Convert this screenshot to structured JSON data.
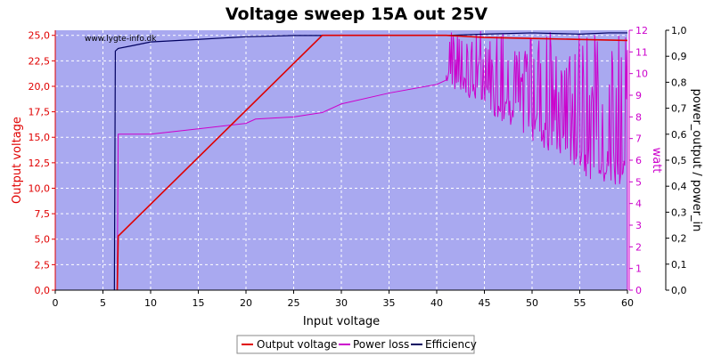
{
  "chart_data": {
    "type": "line",
    "title": "Voltage sweep 15A out 25V",
    "watermark": "www.lygte-info.dk",
    "xlabel": "Input voltage",
    "xlim": [
      0,
      60
    ],
    "x_ticks": [
      "0",
      "5",
      "10",
      "15",
      "20",
      "25",
      "30",
      "35",
      "40",
      "45",
      "50",
      "55",
      "60"
    ],
    "y_left": {
      "label": "Output voltage",
      "lim": [
        0,
        25.5
      ],
      "ticks": [
        "0,0",
        "2,5",
        "5,0",
        "7,5",
        "10,0",
        "12,5",
        "15,0",
        "17,5",
        "20,0",
        "22,5",
        "25,0"
      ],
      "color": "#e00000"
    },
    "y_right1": {
      "label": "watt",
      "lim": [
        0,
        12
      ],
      "ticks": [
        "0",
        "1",
        "2",
        "3",
        "4",
        "5",
        "6",
        "7",
        "8",
        "9",
        "10",
        "11",
        "12"
      ],
      "color": "#cc00cc"
    },
    "y_right2": {
      "label": "power_output / power_in",
      "lim": [
        0,
        1
      ],
      "ticks": [
        "0,0",
        "0,1",
        "0,2",
        "0,3",
        "0,4",
        "0,5",
        "0,6",
        "0,7",
        "0,8",
        "0,9",
        "1,0"
      ],
      "color": "#000000"
    },
    "grid": true,
    "legend_position": "bottom-center",
    "series": [
      {
        "name": "Output voltage",
        "axis": "left",
        "color": "#e00000",
        "x": [
          6.5,
          6.6,
          28,
          41,
          45,
          50,
          55,
          60
        ],
        "y": [
          0,
          5.3,
          25.0,
          25.0,
          24.8,
          24.7,
          24.6,
          24.5
        ]
      },
      {
        "name": "Power loss",
        "axis": "right1",
        "color": "#cc00cc",
        "x": [
          6.5,
          6.6,
          10,
          15,
          20,
          21,
          25,
          28,
          30,
          35,
          40,
          41
        ],
        "y": [
          0.3,
          7.2,
          7.2,
          7.45,
          7.7,
          7.9,
          8.0,
          8.2,
          8.6,
          9.1,
          9.5,
          9.7
        ],
        "noise": {
          "x_start": 41,
          "x_end": 60,
          "low": 4.0,
          "high": 12.0
        }
      },
      {
        "name": "Efficiency",
        "axis": "right2",
        "color": "#000060",
        "x": [
          6.2,
          6.3,
          6.6,
          8,
          10,
          15,
          20,
          25,
          28,
          35,
          41,
          45,
          50,
          55,
          58,
          60
        ],
        "y": [
          0.0,
          0.92,
          0.93,
          0.94,
          0.955,
          0.965,
          0.975,
          0.98,
          0.98,
          0.98,
          0.98,
          0.985,
          0.99,
          0.985,
          0.99,
          0.99
        ]
      }
    ]
  }
}
